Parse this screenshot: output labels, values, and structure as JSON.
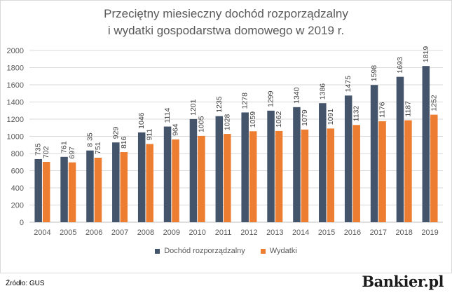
{
  "chart_data": {
    "type": "bar",
    "title_line1": "Przeciętny miesieczny dochód rozporządzalny",
    "title_line2": "i wydatki gospodarstwa domowego w 2019 r.",
    "xlabel": "",
    "ylabel": "",
    "ylim": [
      0,
      2000
    ],
    "yticks": [
      "0",
      "200",
      "400",
      "600",
      "800",
      "1000",
      "1200",
      "1400",
      "1600",
      "1800",
      "2000"
    ],
    "grid": true,
    "legend_position": "bottom",
    "categories": [
      "2004",
      "2005",
      "2006",
      "2007",
      "2008",
      "2009",
      "2010",
      "2011",
      "2012",
      "2013",
      "2014",
      "2015",
      "2016",
      "2017",
      "2018",
      "2019"
    ],
    "series": [
      {
        "name": "Dochód rozporządzalny",
        "color": "#44546a",
        "values": [
          735,
          761,
          835,
          929,
          1046,
          1114,
          1201,
          1235,
          1278,
          1299,
          1340,
          1386,
          1475,
          1598,
          1693,
          1819
        ],
        "labels": [
          "735",
          "761",
          "8 35",
          "929",
          "1046",
          "1114",
          "1201",
          "1235",
          "1278",
          "1299",
          "1340",
          "1386",
          "1475",
          "1598",
          "1693",
          "1819"
        ]
      },
      {
        "name": "Wydatki",
        "color": "#ed7d31",
        "values": [
          702,
          697,
          751,
          816,
          911,
          964,
          1005,
          1028,
          1059,
          1062,
          1079,
          1091,
          1132,
          1176,
          1187,
          1252
        ],
        "labels": [
          "702",
          "697",
          "751",
          "816",
          "911",
          "964",
          "1005",
          "1028",
          "1059",
          "1062",
          "1079",
          "1091",
          "1132",
          "1176",
          "1187",
          "1252"
        ]
      }
    ]
  },
  "footer": {
    "source": "Źródło: GUS",
    "logo_main": "Bankier",
    "logo_suffix": ".pl"
  }
}
